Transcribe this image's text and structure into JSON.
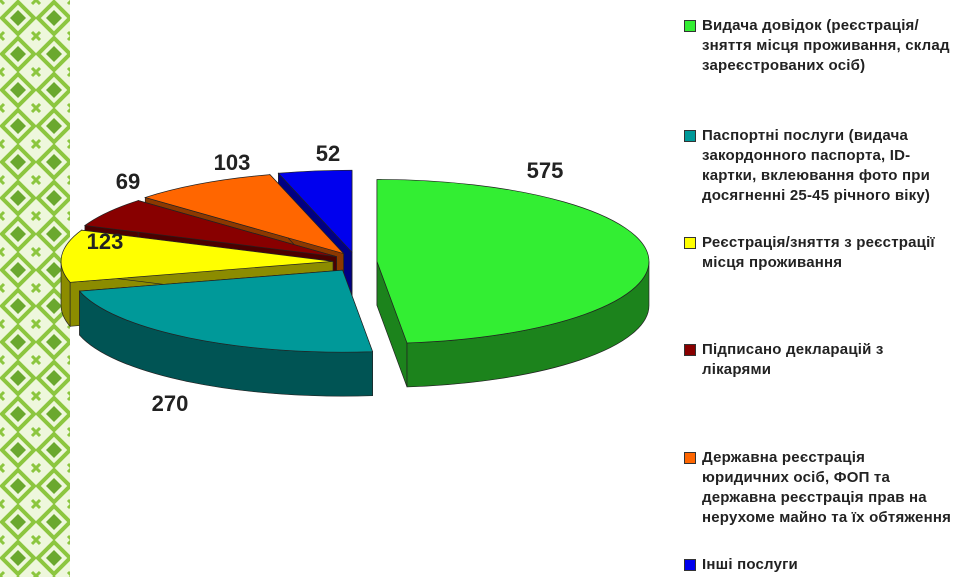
{
  "chart_data": {
    "type": "pie",
    "categories": [
      "Видача довідок (реєстрація/зняття місця проживання, склад зареєстрованих осіб)",
      "Паспортні послуги (видача закордонного паспорта, ID-картки, вклеювання фото при досягненні 25-45 річного віку)",
      "Реєстрація/зняття з реєстрації місця проживання",
      "Підписано декларацій з лікарями",
      "Державна реєстрація юридичних осіб, ФОП та державна реєстрація прав на нерухоме майно та їх обтяження",
      "Інші послуги"
    ],
    "values": [
      575,
      270,
      123,
      69,
      103,
      52
    ],
    "colors": [
      "#33ee33",
      "#009999",
      "#ffff00",
      "#880000",
      "#ff6600",
      "#0000ee"
    ],
    "legend": "right"
  }
}
